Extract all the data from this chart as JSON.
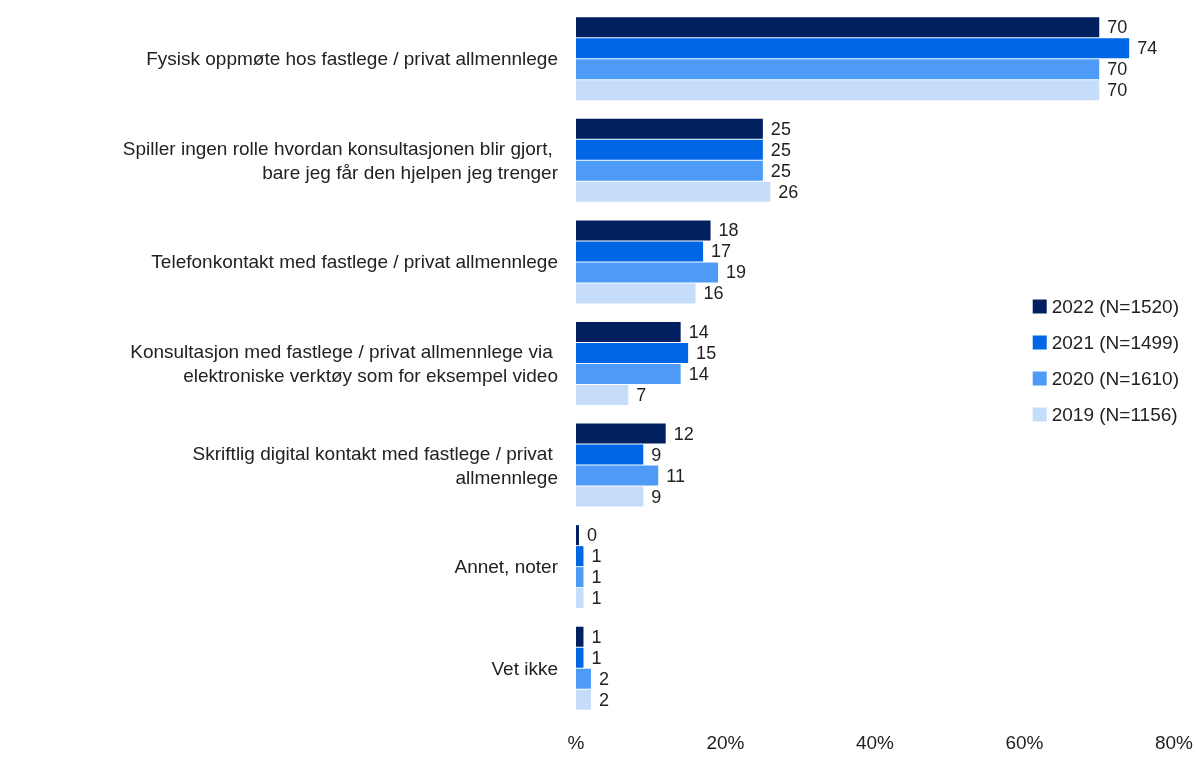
{
  "chart_data": {
    "type": "bar",
    "orientation": "horizontal",
    "categories": [
      "Fysisk oppmøte hos fastlege / privat allmennlege",
      "Spiller ingen rolle hvordan konsultasjonen blir gjort, bare jeg får den hjelpen jeg trenger",
      "Telefonkontakt med fastlege / privat allmennlege",
      "Konsultasjon med fastlege / privat allmennlege via elektroniske verktøy som for eksempel video",
      "Skriftlig digital kontakt med fastlege / privat allmennlege",
      "Annet, noter",
      "Vet ikke"
    ],
    "series": [
      {
        "name": "2022 (N=1520)",
        "color": "#002060",
        "values": [
          70,
          25,
          18,
          14,
          12,
          0,
          1
        ]
      },
      {
        "name": "2021 (N=1499)",
        "color": "#0066e6",
        "values": [
          74,
          25,
          17,
          15,
          9,
          1,
          1
        ]
      },
      {
        "name": "2020 (N=1610)",
        "color": "#4d9bf7",
        "values": [
          70,
          25,
          19,
          14,
          11,
          1,
          2
        ]
      },
      {
        "name": "2019 (N=1156)",
        "color": "#c5dcfb",
        "values": [
          70,
          26,
          16,
          7,
          9,
          1,
          2
        ]
      }
    ],
    "xlim": [
      0,
      80
    ],
    "xticks": [
      {
        "value": 0,
        "label": "%"
      },
      {
        "value": 20,
        "label": "20%"
      },
      {
        "value": 40,
        "label": "40%"
      },
      {
        "value": 60,
        "label": "60%"
      },
      {
        "value": 80,
        "label": "80%"
      }
    ],
    "data_labels": true,
    "grid": false,
    "legend": "right"
  }
}
